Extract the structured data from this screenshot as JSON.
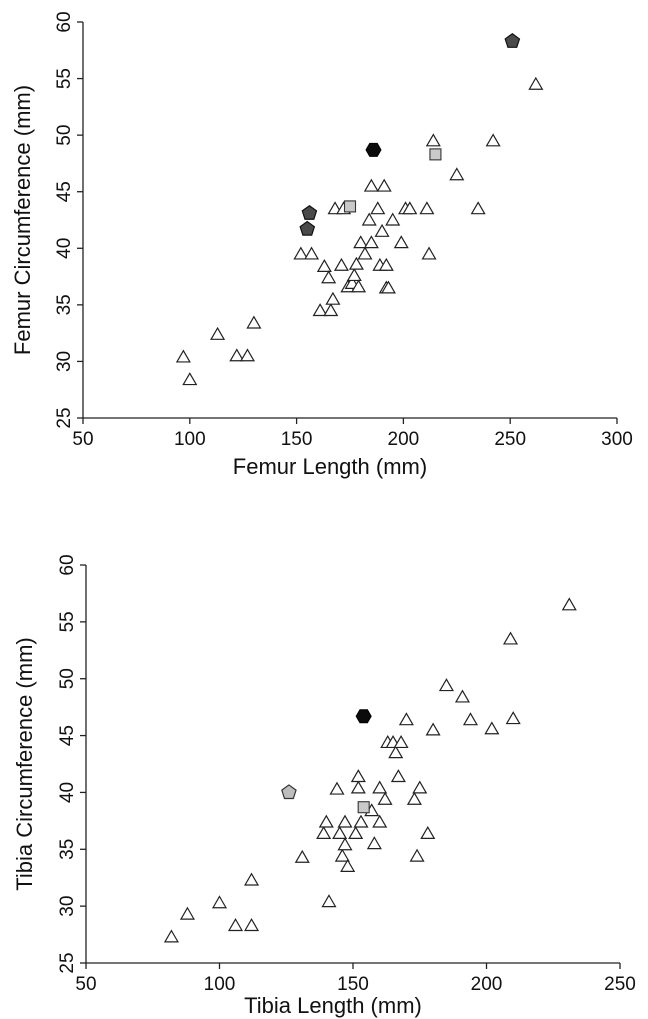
{
  "chart_data": [
    {
      "type": "scatter",
      "xlabel": "Femur Length (mm)",
      "ylabel": "Femur Circumference (mm)",
      "xlim": [
        50,
        300
      ],
      "ylim": [
        25,
        60
      ],
      "xticks": [
        "50",
        "100",
        "150",
        "200",
        "250",
        "300"
      ],
      "yticks": [
        "25",
        "30",
        "35",
        "40",
        "45",
        "50",
        "55",
        "60"
      ],
      "grid": false,
      "legend": "none",
      "series": [
        {
          "marker": "triangle-open",
          "points": [
            [
              97,
              30.2
            ],
            [
              100,
              28.2
            ],
            [
              113,
              32.2
            ],
            [
              122,
              30.3
            ],
            [
              127,
              30.3
            ],
            [
              130,
              33.2
            ],
            [
              152,
              39.3
            ],
            [
              157,
              39.3
            ],
            [
              161,
              34.3
            ],
            [
              163,
              38.2
            ],
            [
              165,
              37.2
            ],
            [
              166,
              34.3
            ],
            [
              167,
              35.3
            ],
            [
              168,
              43.3
            ],
            [
              171,
              38.3
            ],
            [
              172,
              43.3
            ],
            [
              174,
              36.4
            ],
            [
              176,
              36.7
            ],
            [
              177,
              37.4
            ],
            [
              178,
              38.4
            ],
            [
              179,
              36.4
            ],
            [
              180,
              40.3
            ],
            [
              182,
              39.3
            ],
            [
              184,
              42.3
            ],
            [
              185,
              45.3
            ],
            [
              185,
              40.3
            ],
            [
              188,
              43.3
            ],
            [
              189,
              38.3
            ],
            [
              190,
              41.3
            ],
            [
              191,
              45.3
            ],
            [
              192,
              36.3
            ],
            [
              192,
              38.3
            ],
            [
              193,
              36.3
            ],
            [
              195,
              42.3
            ],
            [
              199,
              40.3
            ],
            [
              201,
              43.3
            ],
            [
              203,
              43.3
            ],
            [
              211,
              43.3
            ],
            [
              212,
              39.3
            ],
            [
              214,
              49.3
            ],
            [
              225,
              46.3
            ],
            [
              235,
              43.3
            ],
            [
              242,
              49.3
            ],
            [
              262,
              54.3
            ]
          ]
        },
        {
          "marker": "square-gray",
          "points": [
            [
              175,
              43.7
            ],
            [
              215,
              48.3
            ]
          ]
        },
        {
          "marker": "pentagon-dark",
          "points": [
            [
              155,
              41.7
            ],
            [
              156,
              43.1
            ],
            [
              251,
              58.3
            ]
          ]
        },
        {
          "marker": "hexagon-black",
          "points": [
            [
              186,
              48.7
            ]
          ]
        }
      ]
    },
    {
      "type": "scatter",
      "xlabel": "Tibia Length (mm)",
      "ylabel": "Tibia Circumference (mm)",
      "xlim": [
        50,
        250
      ],
      "ylim": [
        25,
        60
      ],
      "xticks": [
        "50",
        "100",
        "150",
        "200",
        "250"
      ],
      "yticks": [
        "25",
        "30",
        "35",
        "40",
        "45",
        "50",
        "55",
        "60"
      ],
      "grid": false,
      "legend": "none",
      "series": [
        {
          "marker": "triangle-open",
          "points": [
            [
              82,
              27.1
            ],
            [
              88,
              29.1
            ],
            [
              100,
              30.1
            ],
            [
              106,
              28.1
            ],
            [
              112,
              28.1
            ],
            [
              112,
              32.1
            ],
            [
              131,
              34.1
            ],
            [
              139,
              36.2
            ],
            [
              140,
              37.2
            ],
            [
              141,
              30.2
            ],
            [
              144,
              40.1
            ],
            [
              145,
              36.2
            ],
            [
              146,
              34.2
            ],
            [
              147,
              37.2
            ],
            [
              147,
              35.2
            ],
            [
              148,
              33.3
            ],
            [
              151,
              36.2
            ],
            [
              152,
              40.2
            ],
            [
              152,
              41.2
            ],
            [
              153,
              37.2
            ],
            [
              157,
              38.2
            ],
            [
              158,
              35.3
            ],
            [
              160,
              40.2
            ],
            [
              160,
              37.2
            ],
            [
              162,
              39.2
            ],
            [
              163,
              44.2
            ],
            [
              165,
              44.2
            ],
            [
              166,
              43.3
            ],
            [
              167,
              41.2
            ],
            [
              168,
              44.2
            ],
            [
              170,
              46.2
            ],
            [
              173,
              39.2
            ],
            [
              174,
              34.2
            ],
            [
              175,
              40.2
            ],
            [
              178,
              36.2
            ],
            [
              180,
              45.3
            ],
            [
              185,
              49.2
            ],
            [
              191,
              48.2
            ],
            [
              194,
              46.2
            ],
            [
              202,
              45.4
            ],
            [
              209,
              53.3
            ],
            [
              210,
              46.3
            ],
            [
              231,
              56.3
            ]
          ]
        },
        {
          "marker": "square-gray",
          "points": [
            [
              154,
              38.7
            ]
          ]
        },
        {
          "marker": "pentagon-light",
          "points": [
            [
              126,
              40.0
            ]
          ]
        },
        {
          "marker": "hexagon-black",
          "points": [
            [
              154,
              46.7
            ]
          ]
        }
      ]
    }
  ]
}
